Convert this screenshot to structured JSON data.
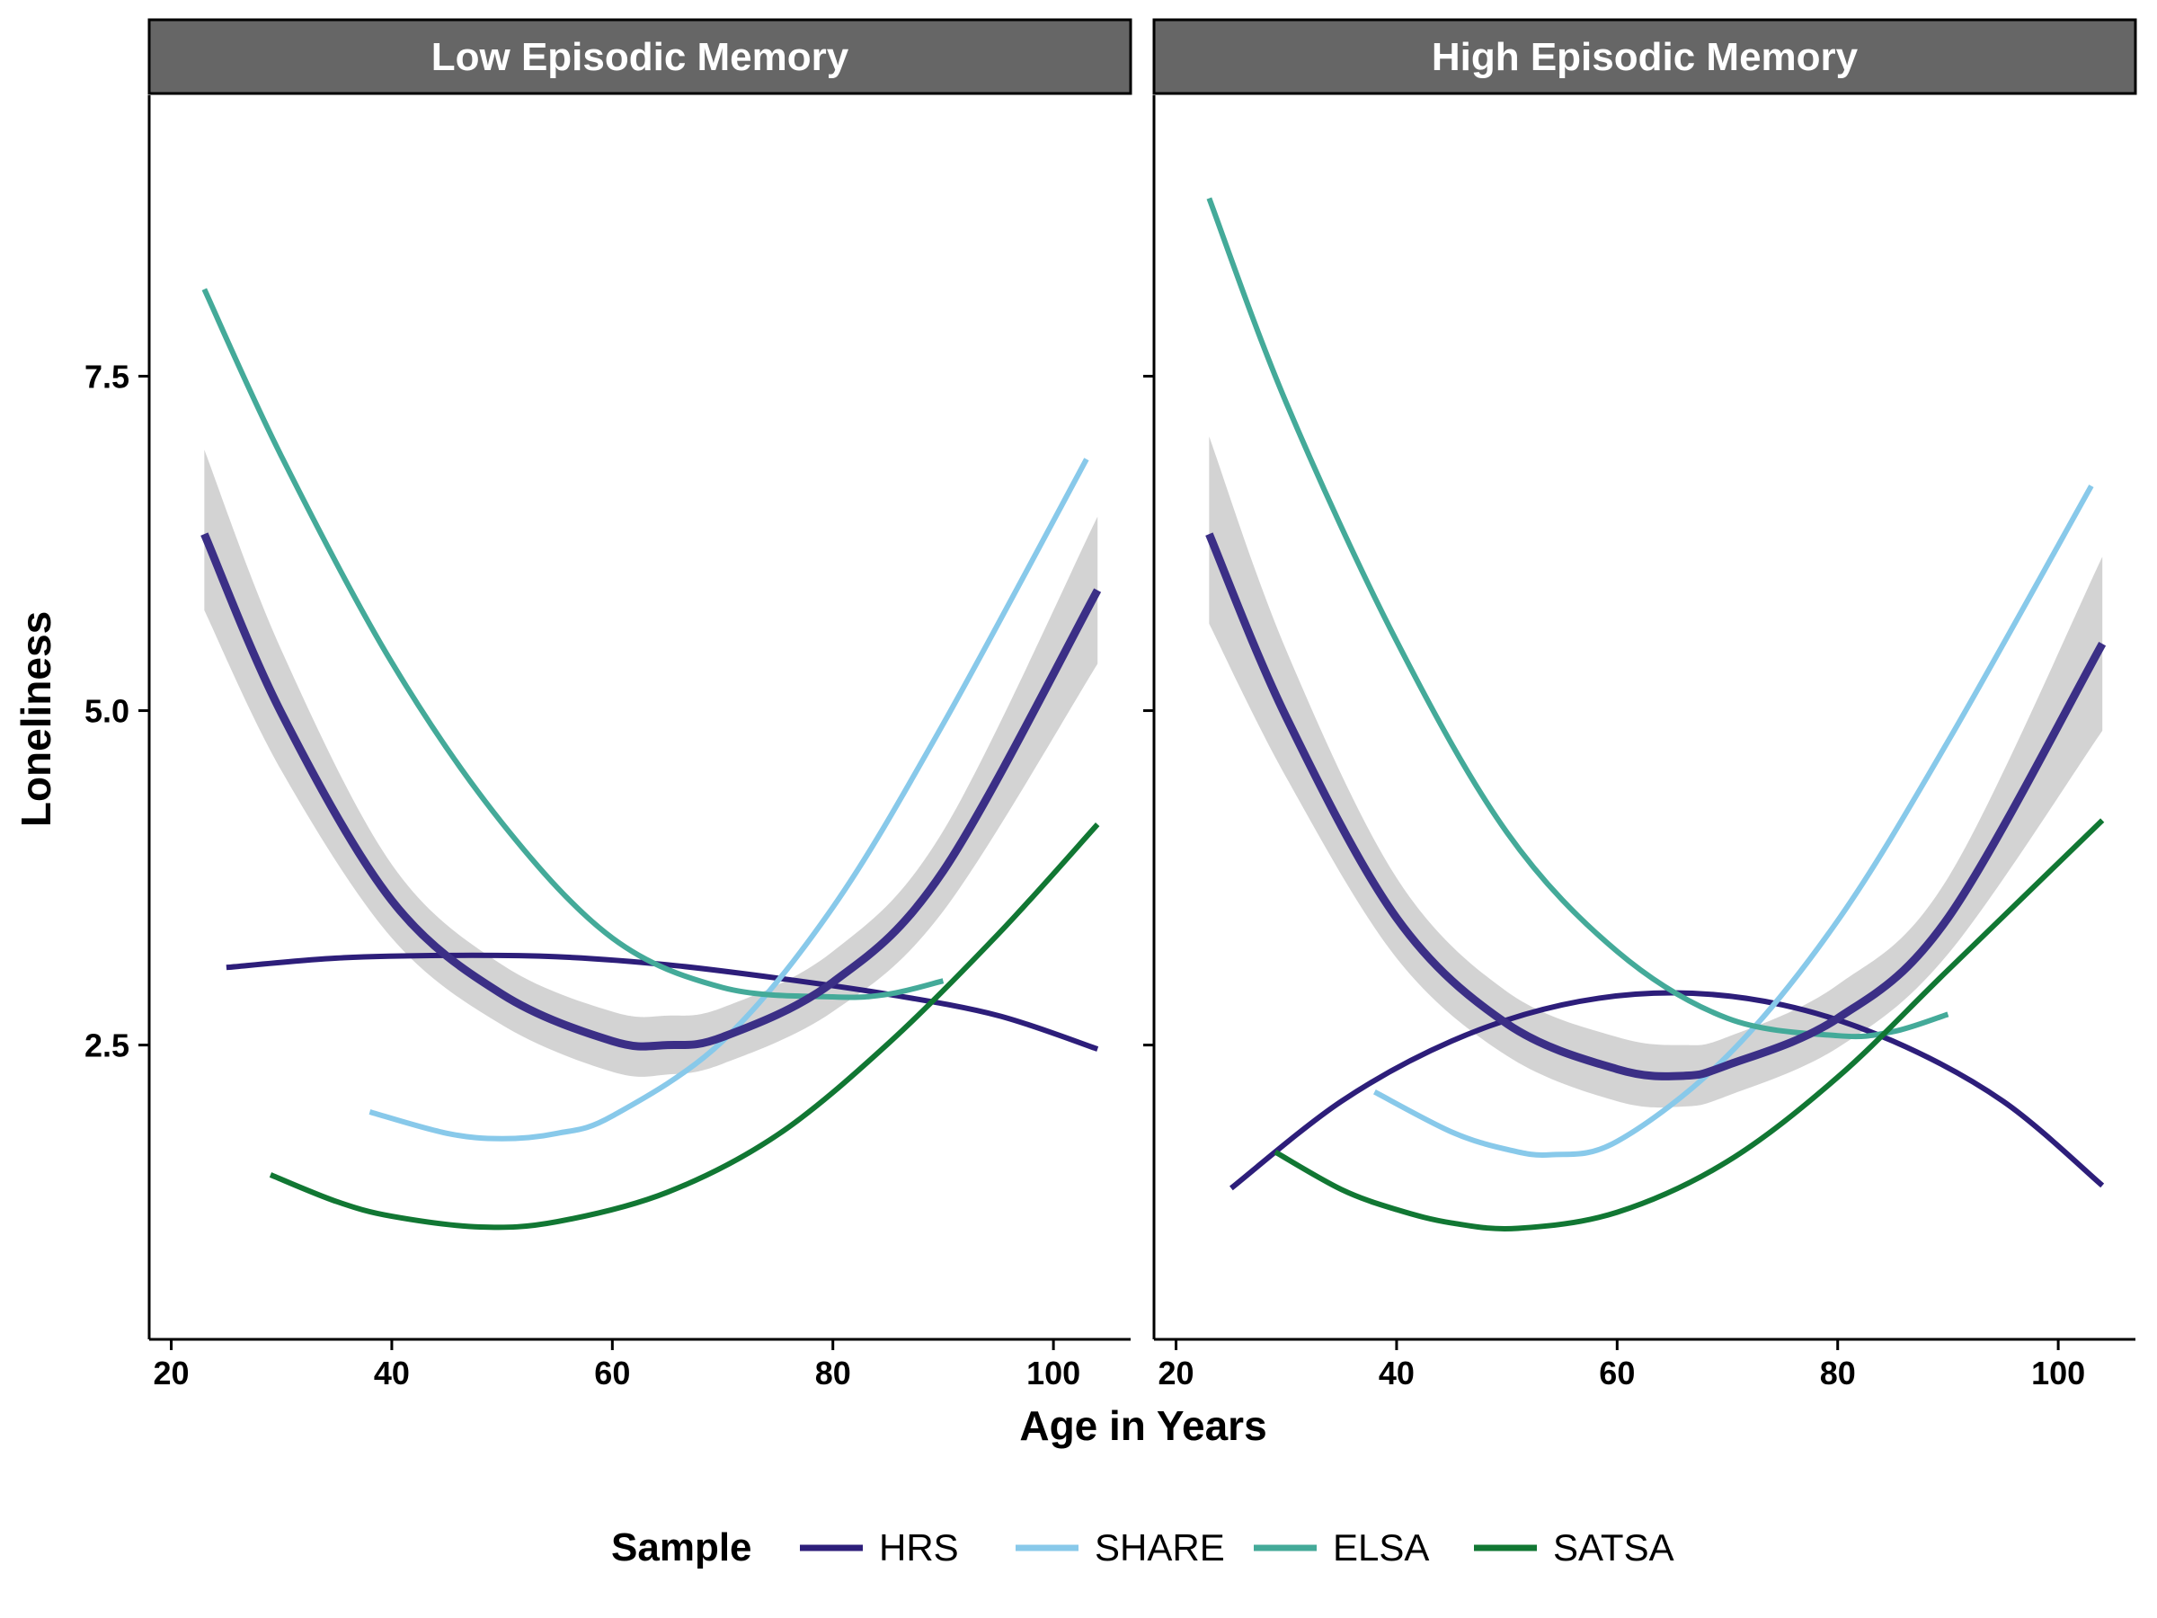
{
  "chart_data": {
    "type": "line",
    "title": "",
    "xlabel": "Age in Years",
    "ylabel": "Loneliness",
    "xlim": [
      18,
      107
    ],
    "ylim": [
      0.3,
      9.6
    ],
    "x_ticks": [
      20,
      40,
      60,
      80,
      100
    ],
    "y_ticks": [
      2.5,
      5.0,
      7.5
    ],
    "y_tick_labels": [
      "2.5",
      "5.0",
      "7.5"
    ],
    "grid": false,
    "legend": {
      "title": "Sample",
      "position": "bottom",
      "entries": [
        {
          "name": "HRS",
          "color": "#2d1e7a"
        },
        {
          "name": "SHARE",
          "color": "#88c9ea"
        },
        {
          "name": "ELSA",
          "color": "#44aa99"
        },
        {
          "name": "SATSA",
          "color": "#117733"
        }
      ]
    },
    "overall_line_color": "#3b2f86",
    "ribbon_color": "#d3d3d3",
    "panels": [
      {
        "title": "Low Episodic Memory",
        "overall": {
          "x": [
            23,
            30,
            40,
            50,
            60,
            65,
            70,
            80,
            90,
            104
          ],
          "y": [
            6.32,
            4.98,
            3.58,
            2.88,
            2.53,
            2.5,
            2.56,
            2.97,
            3.8,
            5.9
          ],
          "ci_lower": [
            5.75,
            4.55,
            3.3,
            2.65,
            2.3,
            2.28,
            2.36,
            2.75,
            3.5,
            5.35
          ],
          "ci_upper": [
            6.95,
            5.45,
            3.85,
            3.1,
            2.75,
            2.72,
            2.78,
            3.2,
            4.1,
            6.45
          ]
        },
        "series": [
          {
            "name": "HRS",
            "x": [
              25,
              35,
              45,
              55,
              65,
              75,
              85,
              95,
              104
            ],
            "y": [
              3.08,
              3.15,
              3.17,
              3.16,
              3.1,
              3.0,
              2.88,
              2.72,
              2.47
            ]
          },
          {
            "name": "SHARE",
            "x": [
              38,
              45,
              50,
              55,
              60,
              70,
              80,
              90,
              103
            ],
            "y": [
              2.0,
              1.84,
              1.8,
              1.84,
              1.97,
              2.53,
              3.53,
              4.9,
              6.88
            ]
          },
          {
            "name": "ELSA",
            "x": [
              23,
              30,
              40,
              50,
              60,
              70,
              80,
              85,
              90
            ],
            "y": [
              8.15,
              6.9,
              5.36,
              4.16,
              3.3,
              2.93,
              2.86,
              2.88,
              2.98
            ]
          },
          {
            "name": "SATSA",
            "x": [
              29,
              35,
              40,
              48,
              55,
              65,
              75,
              85,
              95,
              104
            ],
            "y": [
              1.53,
              1.33,
              1.22,
              1.14,
              1.18,
              1.4,
              1.83,
              2.51,
              3.33,
              4.15
            ]
          }
        ]
      },
      {
        "title": "High Episodic Memory",
        "overall": {
          "x": [
            23,
            30,
            40,
            50,
            60,
            66,
            70,
            80,
            90,
            104
          ],
          "y": [
            6.32,
            4.95,
            3.45,
            2.66,
            2.32,
            2.27,
            2.35,
            2.7,
            3.45,
            5.5
          ],
          "ci_lower": [
            5.65,
            4.5,
            3.15,
            2.42,
            2.08,
            2.04,
            2.12,
            2.48,
            3.18,
            4.85
          ],
          "ci_upper": [
            7.05,
            5.45,
            3.75,
            2.9,
            2.56,
            2.5,
            2.56,
            2.95,
            3.75,
            6.15
          ]
        },
        "series": [
          {
            "name": "HRS",
            "x": [
              25,
              35,
              45,
              55,
              65,
              75,
              85,
              95,
              104
            ],
            "y": [
              1.43,
              2.08,
              2.53,
              2.8,
              2.89,
              2.8,
              2.53,
              2.08,
              1.45
            ]
          },
          {
            "name": "SHARE",
            "x": [
              38,
              45,
              50,
              54,
              60,
              70,
              80,
              90,
              103
            ],
            "y": [
              2.15,
              1.85,
              1.72,
              1.68,
              1.78,
              2.42,
              3.43,
              4.77,
              6.68
            ]
          },
          {
            "name": "ELSA",
            "x": [
              23,
              30,
              40,
              50,
              60,
              70,
              80,
              85,
              90
            ],
            "y": [
              8.83,
              7.3,
              5.52,
              4.09,
              3.2,
              2.7,
              2.57,
              2.6,
              2.73
            ]
          },
          {
            "name": "SATSA",
            "x": [
              29,
              35,
              40,
              45,
              51,
              60,
              70,
              80,
              90,
              104
            ],
            "y": [
              1.7,
              1.42,
              1.27,
              1.17,
              1.13,
              1.25,
              1.63,
              2.26,
              3.06,
              4.18
            ]
          }
        ]
      }
    ]
  }
}
